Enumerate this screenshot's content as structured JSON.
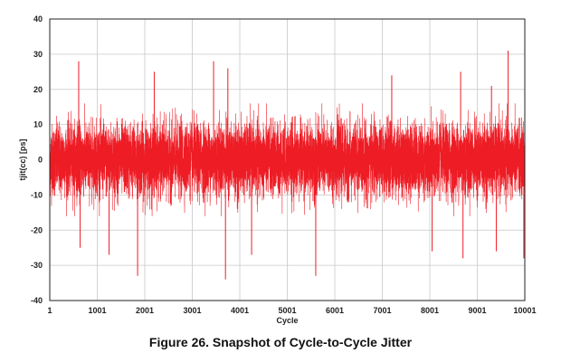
{
  "chart_data": {
    "type": "line",
    "title": "",
    "xlabel": "Cycle",
    "ylabel": "tjit(cc) [ps]",
    "xlim": [
      1,
      10001
    ],
    "ylim": [
      -40,
      40
    ],
    "xticks": [
      "1",
      "1001",
      "2001",
      "3001",
      "4001",
      "5001",
      "6001",
      "7001",
      "8001",
      "9001",
      "10001"
    ],
    "yticks": [
      "40",
      "30",
      "20",
      "10",
      "0",
      "-10",
      "-20",
      "-30",
      "-40"
    ],
    "grid": true,
    "series": [
      {
        "name": "tjit(cc)",
        "color": "#ee1c25",
        "num_points": 10000,
        "typical_range": [
          -12,
          12
        ],
        "rms_estimate": 5,
        "peaks": [
          {
            "x": 610,
            "y": 28
          },
          {
            "x": 640,
            "y": -25
          },
          {
            "x": 1250,
            "y": -27
          },
          {
            "x": 1850,
            "y": -33
          },
          {
            "x": 2200,
            "y": 25
          },
          {
            "x": 3450,
            "y": 28
          },
          {
            "x": 3700,
            "y": -34
          },
          {
            "x": 3750,
            "y": 26
          },
          {
            "x": 4250,
            "y": -27
          },
          {
            "x": 5600,
            "y": -33
          },
          {
            "x": 7200,
            "y": 24
          },
          {
            "x": 8050,
            "y": -26
          },
          {
            "x": 8650,
            "y": 25
          },
          {
            "x": 8700,
            "y": -28
          },
          {
            "x": 9300,
            "y": 21
          },
          {
            "x": 9400,
            "y": -26
          },
          {
            "x": 9650,
            "y": 31
          },
          {
            "x": 9980,
            "y": -28
          }
        ]
      }
    ]
  },
  "caption": "Figure 26. Snapshot of Cycle-to-Cycle Jitter"
}
